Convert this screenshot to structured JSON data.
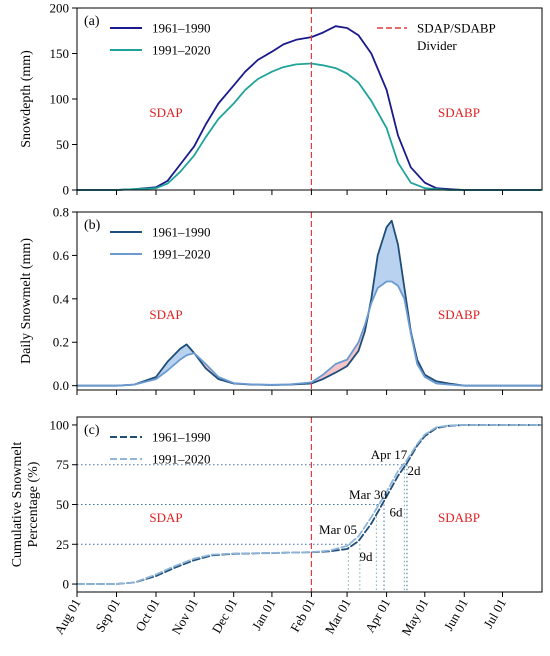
{
  "chart_data": [
    {
      "type": "line",
      "panel_label": "(a)",
      "ylabel": "Snowdepth (mm)",
      "ylim": [
        0,
        200
      ],
      "yticks": [
        0,
        50,
        100,
        150,
        200
      ],
      "grid": false,
      "legend": "top-left",
      "divider_label": "SDAP/SDABP Divider",
      "region_labels": [
        "SDAP",
        "SDABP"
      ],
      "series": [
        {
          "name": "1961–1990",
          "color": "#1a1a8c",
          "x": [
            "Aug 01",
            "Sep 01",
            "Sep 15",
            "Oct 01",
            "Oct 10",
            "Oct 20",
            "Nov 01",
            "Nov 10",
            "Nov 20",
            "Dec 01",
            "Dec 10",
            "Dec 20",
            "Jan 01",
            "Jan 10",
            "Jan 20",
            "Feb 01",
            "Feb 10",
            "Feb 20",
            "Mar 01",
            "Mar 10",
            "Mar 20",
            "Apr 01",
            "Apr 10",
            "Apr 20",
            "May 01",
            "May 10",
            "May 20",
            "Jun 01",
            "Jul 01",
            "Jul 31"
          ],
          "y": [
            0,
            0,
            1,
            3,
            10,
            28,
            48,
            72,
            95,
            115,
            130,
            143,
            152,
            160,
            165,
            168,
            173,
            180,
            178,
            170,
            150,
            110,
            60,
            25,
            8,
            2,
            1,
            0,
            0,
            0
          ]
        },
        {
          "name": "1991–2020",
          "color": "#1fa39a",
          "x": [
            "Aug 01",
            "Sep 01",
            "Sep 15",
            "Oct 01",
            "Oct 10",
            "Oct 20",
            "Nov 01",
            "Nov 10",
            "Nov 20",
            "Dec 01",
            "Dec 10",
            "Dec 20",
            "Jan 01",
            "Jan 10",
            "Jan 20",
            "Feb 01",
            "Feb 10",
            "Feb 20",
            "Mar 01",
            "Mar 10",
            "Mar 20",
            "Apr 01",
            "Apr 10",
            "Apr 20",
            "May 01",
            "May 10",
            "May 20",
            "Jun 01",
            "Jul 01",
            "Jul 31"
          ],
          "y": [
            0,
            0,
            1,
            2,
            7,
            20,
            38,
            58,
            78,
            95,
            110,
            122,
            130,
            135,
            138,
            139,
            137,
            134,
            128,
            118,
            98,
            68,
            30,
            8,
            2,
            1,
            0,
            0,
            0,
            0
          ]
        }
      ]
    },
    {
      "type": "line",
      "panel_label": "(b)",
      "ylabel": "Daily Snowmelt (mm)",
      "ylim": [
        -0.02,
        0.8
      ],
      "yticks": [
        0.0,
        0.2,
        0.4,
        0.6,
        0.8
      ],
      "grid": false,
      "legend": "top-left",
      "region_labels": [
        "SDAP",
        "SDABP"
      ],
      "series": [
        {
          "name": "1961–1990",
          "color": "#1f4e79",
          "x": [
            "Aug 01",
            "Sep 01",
            "Sep 15",
            "Oct 01",
            "Oct 10",
            "Oct 20",
            "Oct 25",
            "Nov 01",
            "Nov 10",
            "Nov 20",
            "Dec 01",
            "Dec 15",
            "Jan 01",
            "Jan 15",
            "Feb 01",
            "Feb 10",
            "Feb 20",
            "Mar 01",
            "Mar 10",
            "Mar 15",
            "Mar 20",
            "Mar 25",
            "Apr 01",
            "Apr 05",
            "Apr 10",
            "Apr 15",
            "Apr 20",
            "Apr 25",
            "May 01",
            "May 10",
            "May 20",
            "Jun 01",
            "Jul 01",
            "Jul 31"
          ],
          "y": [
            0,
            0,
            0.005,
            0.04,
            0.11,
            0.17,
            0.19,
            0.15,
            0.08,
            0.03,
            0.01,
            0.005,
            0.003,
            0.005,
            0.01,
            0.03,
            0.06,
            0.09,
            0.16,
            0.25,
            0.4,
            0.6,
            0.73,
            0.76,
            0.65,
            0.45,
            0.25,
            0.12,
            0.05,
            0.02,
            0.01,
            0,
            0,
            0
          ]
        },
        {
          "name": "1991–2020",
          "color": "#6b9bd1",
          "x": [
            "Aug 01",
            "Sep 01",
            "Sep 15",
            "Oct 01",
            "Oct 10",
            "Oct 20",
            "Oct 25",
            "Nov 01",
            "Nov 10",
            "Nov 20",
            "Dec 01",
            "Dec 15",
            "Jan 01",
            "Jan 15",
            "Feb 01",
            "Feb 10",
            "Feb 20",
            "Mar 01",
            "Mar 10",
            "Mar 15",
            "Mar 20",
            "Mar 25",
            "Apr 01",
            "Apr 05",
            "Apr 10",
            "Apr 15",
            "Apr 20",
            "Apr 25",
            "May 01",
            "May 10",
            "May 20",
            "Jun 01",
            "Jul 01",
            "Jul 31"
          ],
          "y": [
            0,
            0,
            0.005,
            0.03,
            0.07,
            0.12,
            0.14,
            0.15,
            0.1,
            0.04,
            0.012,
            0.006,
            0.004,
            0.006,
            0.015,
            0.05,
            0.1,
            0.12,
            0.2,
            0.28,
            0.38,
            0.45,
            0.48,
            0.48,
            0.46,
            0.4,
            0.24,
            0.1,
            0.04,
            0.01,
            0.005,
            0,
            0,
            0
          ]
        }
      ]
    },
    {
      "type": "line",
      "panel_label": "(c)",
      "ylabel": "Cumulative Snowmelt Percentage (%)",
      "ylabel_lines": [
        "Cumulative Snowmelt",
        "Percentage (%)"
      ],
      "ylim": [
        -5,
        105
      ],
      "yticks": [
        0,
        25,
        50,
        75,
        100
      ],
      "grid": false,
      "legend": "top-left",
      "region_labels": [
        "SDAP",
        "SDABP"
      ],
      "series": [
        {
          "name": "1961–1990",
          "color": "#1f4e79",
          "dash": "dashed",
          "x": [
            "Aug 01",
            "Sep 01",
            "Sep 15",
            "Oct 01",
            "Oct 15",
            "Nov 01",
            "Nov 15",
            "Dec 01",
            "Jan 01",
            "Feb 01",
            "Feb 15",
            "Mar 01",
            "Mar 10",
            "Mar 20",
            "Apr 01",
            "Apr 10",
            "Apr 17",
            "Apr 25",
            "May 01",
            "May 10",
            "May 20",
            "Jun 01",
            "Jul 01",
            "Jul 31"
          ],
          "y": [
            0,
            0,
            1,
            5,
            10,
            15,
            18,
            19,
            19.5,
            20,
            20.5,
            22,
            27,
            38,
            55,
            68,
            76,
            87,
            93,
            98,
            99.5,
            100,
            100,
            100
          ]
        },
        {
          "name": "1991–2020",
          "color": "#8fb5d8",
          "dash": "dashed",
          "x": [
            "Aug 01",
            "Sep 01",
            "Sep 15",
            "Oct 01",
            "Oct 15",
            "Nov 01",
            "Nov 15",
            "Dec 01",
            "Jan 01",
            "Feb 01",
            "Feb 15",
            "Mar 01",
            "Mar 10",
            "Mar 20",
            "Apr 01",
            "Apr 10",
            "Apr 17",
            "Apr 25",
            "May 01",
            "May 10",
            "May 20",
            "Jun 01",
            "Jul 01",
            "Jul 31"
          ],
          "y": [
            0,
            0,
            1,
            6,
            11,
            16,
            18.5,
            19.2,
            19.6,
            20,
            21,
            24,
            30,
            42,
            58,
            71,
            78,
            88,
            94,
            98.5,
            99.7,
            100,
            100,
            100
          ]
        }
      ],
      "annotations": [
        {
          "text": "Mar 05",
          "date": "Mar 05",
          "percent": 25
        },
        {
          "text": "Mar 30",
          "date": "Mar 30",
          "percent": 50
        },
        {
          "text": "Apr 17",
          "date": "Apr 17",
          "percent": 75
        },
        {
          "text": "9d",
          "percent": 25
        },
        {
          "text": "6d",
          "percent": 50
        },
        {
          "text": "2d",
          "percent": 75
        }
      ],
      "xticks": [
        "Aug 01",
        "Sep 01",
        "Oct 01",
        "Nov 01",
        "Dec 01",
        "Jan 01",
        "Feb 01",
        "Mar 01",
        "Apr 01",
        "May 01",
        "Jun 01",
        "Jul 01"
      ]
    }
  ]
}
